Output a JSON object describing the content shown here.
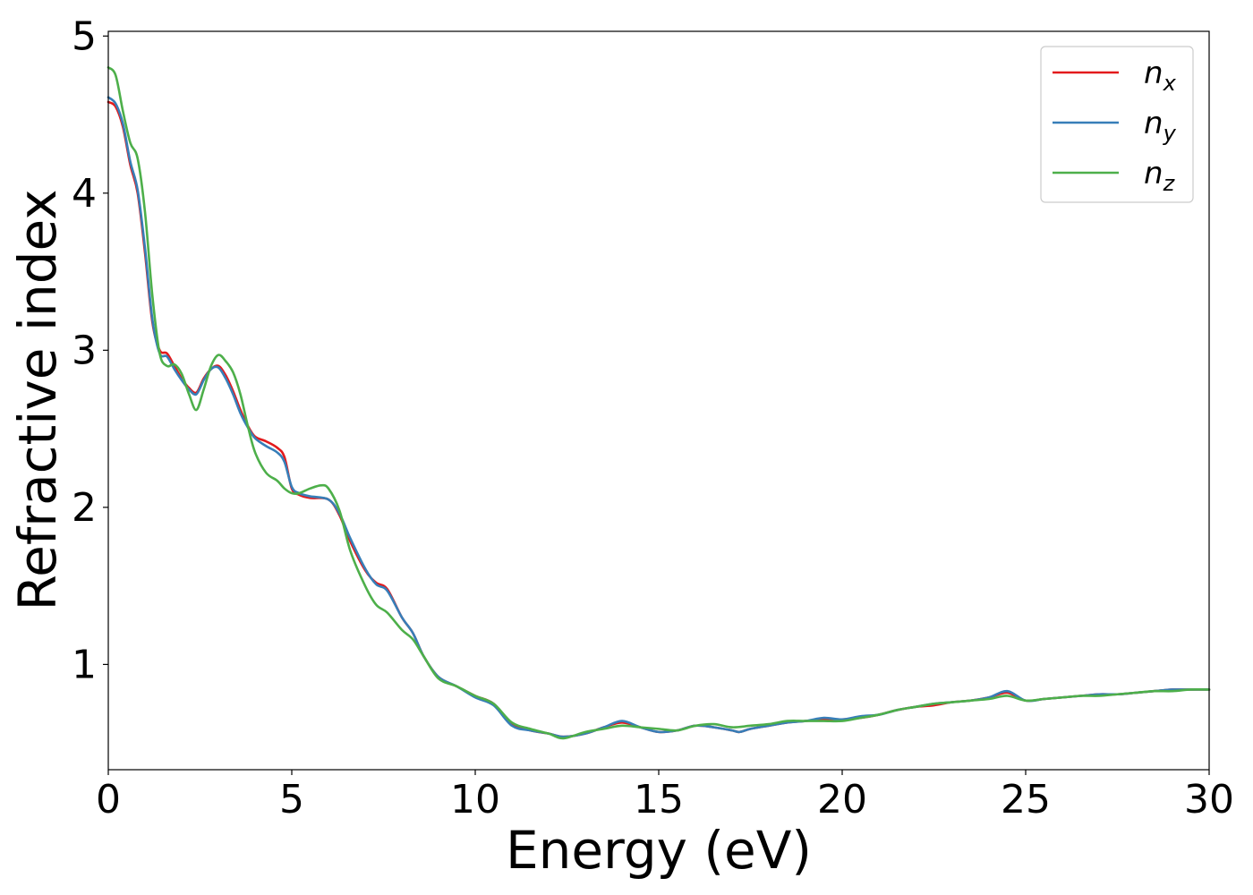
{
  "chart_data": {
    "type": "line",
    "title": "",
    "xlabel": "Energy (eV)",
    "ylabel": "Refractive index",
    "xlim": [
      0,
      30
    ],
    "ylim": [
      0.33,
      5.03
    ],
    "xticks": [
      0,
      5,
      10,
      15,
      20,
      25,
      30
    ],
    "yticks": [
      1,
      2,
      3,
      4,
      5
    ],
    "grid": false,
    "legend_position": "top-right",
    "series": [
      {
        "name": "n",
        "subscript": "x",
        "color": "#e31a1c",
        "x": [
          0,
          0.2,
          0.4,
          0.6,
          0.8,
          1.0,
          1.2,
          1.4,
          1.6,
          1.8,
          2.0,
          2.2,
          2.4,
          2.6,
          2.8,
          3.0,
          3.2,
          3.4,
          3.6,
          3.8,
          4.0,
          4.3,
          4.6,
          4.8,
          5.0,
          5.2,
          5.5,
          6.0,
          6.3,
          6.6,
          7.0,
          7.3,
          7.6,
          8.0,
          8.3,
          8.6,
          9.0,
          9.5,
          10.0,
          10.5,
          11.0,
          11.5,
          12.0,
          12.4,
          13.0,
          13.5,
          14.0,
          14.5,
          15.0,
          15.5,
          16.0,
          16.5,
          17.0,
          17.2,
          17.5,
          18.0,
          18.5,
          19.0,
          19.5,
          20.0,
          20.5,
          21.0,
          21.5,
          22.0,
          22.5,
          23.0,
          23.5,
          24.0,
          24.5,
          25.0,
          25.5,
          26.0,
          26.5,
          27.0,
          27.5,
          28.0,
          28.5,
          29.0,
          29.5,
          30.0
        ],
        "y": [
          4.58,
          4.55,
          4.42,
          4.18,
          4.0,
          3.62,
          3.18,
          3.0,
          2.98,
          2.9,
          2.82,
          2.76,
          2.73,
          2.82,
          2.88,
          2.9,
          2.84,
          2.74,
          2.62,
          2.52,
          2.45,
          2.42,
          2.38,
          2.32,
          2.12,
          2.08,
          2.06,
          2.05,
          1.95,
          1.78,
          1.6,
          1.52,
          1.48,
          1.3,
          1.2,
          1.05,
          0.92,
          0.86,
          0.8,
          0.75,
          0.62,
          0.58,
          0.56,
          0.54,
          0.56,
          0.6,
          0.63,
          0.6,
          0.57,
          0.58,
          0.61,
          0.6,
          0.58,
          0.57,
          0.59,
          0.61,
          0.63,
          0.64,
          0.65,
          0.65,
          0.66,
          0.68,
          0.71,
          0.73,
          0.74,
          0.76,
          0.77,
          0.79,
          0.82,
          0.77,
          0.78,
          0.79,
          0.8,
          0.81,
          0.81,
          0.82,
          0.83,
          0.84,
          0.84,
          0.84
        ]
      },
      {
        "name": "n",
        "subscript": "y",
        "color": "#377eb8",
        "x": [
          0,
          0.2,
          0.4,
          0.6,
          0.8,
          1.0,
          1.2,
          1.4,
          1.6,
          1.8,
          2.0,
          2.2,
          2.4,
          2.6,
          2.8,
          3.0,
          3.2,
          3.4,
          3.6,
          3.8,
          4.0,
          4.3,
          4.6,
          4.8,
          5.0,
          5.2,
          5.5,
          6.0,
          6.3,
          6.6,
          7.0,
          7.3,
          7.6,
          8.0,
          8.3,
          8.6,
          9.0,
          9.5,
          10.0,
          10.5,
          11.0,
          11.5,
          12.0,
          12.4,
          13.0,
          13.5,
          14.0,
          14.5,
          15.0,
          15.5,
          16.0,
          16.5,
          17.0,
          17.2,
          17.5,
          18.0,
          18.5,
          19.0,
          19.5,
          20.0,
          20.5,
          21.0,
          21.5,
          22.0,
          22.5,
          23.0,
          23.5,
          24.0,
          24.5,
          25.0,
          25.5,
          26.0,
          26.5,
          27.0,
          27.5,
          28.0,
          28.5,
          29.0,
          29.5,
          30.0
        ],
        "y": [
          4.61,
          4.57,
          4.44,
          4.2,
          4.02,
          3.65,
          3.2,
          2.98,
          2.96,
          2.88,
          2.81,
          2.75,
          2.72,
          2.81,
          2.88,
          2.89,
          2.82,
          2.72,
          2.6,
          2.51,
          2.44,
          2.39,
          2.35,
          2.29,
          2.13,
          2.09,
          2.07,
          2.05,
          1.96,
          1.8,
          1.61,
          1.51,
          1.47,
          1.3,
          1.2,
          1.05,
          0.92,
          0.86,
          0.79,
          0.74,
          0.61,
          0.58,
          0.56,
          0.54,
          0.56,
          0.6,
          0.64,
          0.6,
          0.57,
          0.58,
          0.61,
          0.6,
          0.58,
          0.57,
          0.59,
          0.61,
          0.63,
          0.64,
          0.66,
          0.65,
          0.67,
          0.68,
          0.71,
          0.73,
          0.75,
          0.76,
          0.77,
          0.79,
          0.83,
          0.77,
          0.78,
          0.79,
          0.8,
          0.81,
          0.81,
          0.82,
          0.83,
          0.84,
          0.84,
          0.84
        ]
      },
      {
        "name": "n",
        "subscript": "z",
        "color": "#4daf4a",
        "x": [
          0,
          0.2,
          0.4,
          0.6,
          0.8,
          1.0,
          1.2,
          1.4,
          1.6,
          1.8,
          2.0,
          2.2,
          2.4,
          2.6,
          2.8,
          3.0,
          3.2,
          3.4,
          3.6,
          3.8,
          4.0,
          4.3,
          4.6,
          4.8,
          5.0,
          5.2,
          5.5,
          5.8,
          6.0,
          6.3,
          6.6,
          7.0,
          7.3,
          7.6,
          8.0,
          8.3,
          8.6,
          9.0,
          9.5,
          10.0,
          10.5,
          11.0,
          11.5,
          12.0,
          12.4,
          13.0,
          13.5,
          14.0,
          14.5,
          15.0,
          15.5,
          16.0,
          16.5,
          17.0,
          17.5,
          18.0,
          18.5,
          19.0,
          19.5,
          20.0,
          20.5,
          21.0,
          21.5,
          22.0,
          22.5,
          23.0,
          23.5,
          24.0,
          24.5,
          25.0,
          25.5,
          26.0,
          26.5,
          27.0,
          27.5,
          28.0,
          28.5,
          29.0,
          29.5,
          30.0
        ],
        "y": [
          4.8,
          4.75,
          4.52,
          4.32,
          4.22,
          3.88,
          3.35,
          2.98,
          2.9,
          2.91,
          2.85,
          2.72,
          2.62,
          2.75,
          2.9,
          2.97,
          2.93,
          2.86,
          2.72,
          2.52,
          2.35,
          2.22,
          2.17,
          2.12,
          2.09,
          2.09,
          2.12,
          2.14,
          2.12,
          1.98,
          1.72,
          1.5,
          1.38,
          1.33,
          1.22,
          1.16,
          1.05,
          0.91,
          0.86,
          0.8,
          0.75,
          0.63,
          0.59,
          0.56,
          0.53,
          0.57,
          0.59,
          0.61,
          0.6,
          0.59,
          0.58,
          0.61,
          0.62,
          0.6,
          0.61,
          0.62,
          0.64,
          0.64,
          0.64,
          0.64,
          0.66,
          0.68,
          0.71,
          0.73,
          0.75,
          0.76,
          0.77,
          0.78,
          0.8,
          0.77,
          0.78,
          0.79,
          0.8,
          0.8,
          0.81,
          0.82,
          0.83,
          0.83,
          0.84,
          0.84
        ]
      }
    ]
  }
}
